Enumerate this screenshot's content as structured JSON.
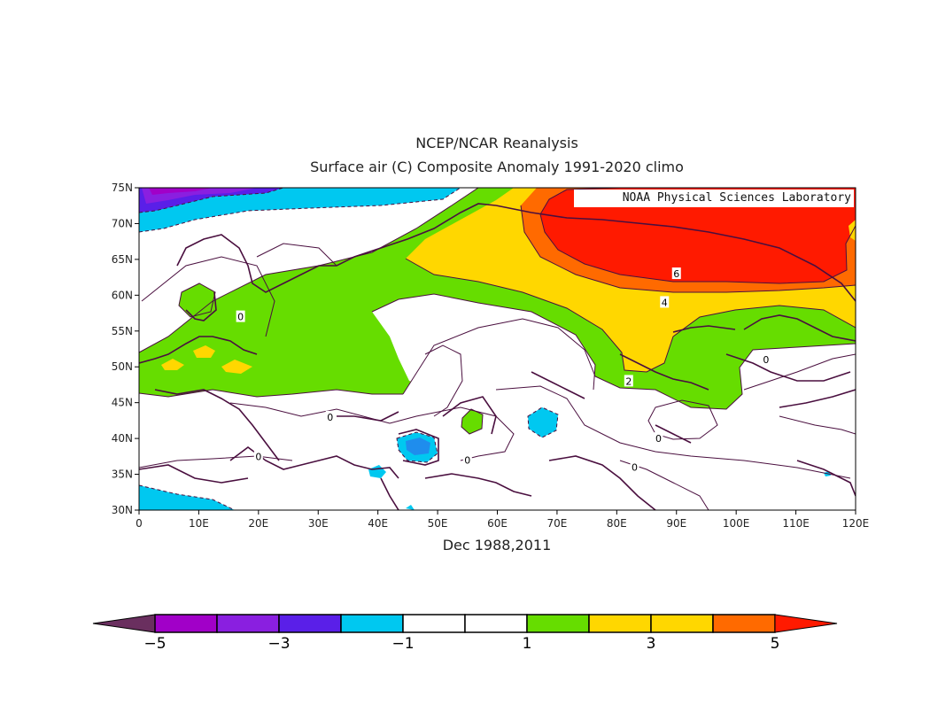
{
  "header": {
    "title": "NCEP/NCAR Reanalysis",
    "subtitle": "Surface air (C) Composite Anomaly 1991-2020 climo"
  },
  "credit": "NOAA Physical Sciences Laboratory",
  "bottom_label": "Dec 1988,2011",
  "axes": {
    "lat_ticks": [
      "75N",
      "70N",
      "65N",
      "60N",
      "55N",
      "50N",
      "45N",
      "40N",
      "35N",
      "30N"
    ],
    "lon_ticks": [
      "0",
      "10E",
      "20E",
      "30E",
      "40E",
      "50E",
      "60E",
      "70E",
      "80E",
      "90E",
      "100E",
      "110E",
      "120E"
    ]
  },
  "map": {
    "region": {
      "lon": [
        0,
        120
      ],
      "lat": [
        30,
        75
      ]
    },
    "contour_labels": [
      {
        "text": "6",
        "lon": 90,
        "lat": 63
      },
      {
        "text": "4",
        "lon": 88,
        "lat": 59
      },
      {
        "text": "2",
        "lon": 82,
        "lat": 48
      },
      {
        "text": "0",
        "lon": 17,
        "lat": 57
      },
      {
        "text": "0",
        "lon": 32,
        "lat": 43
      },
      {
        "text": "0",
        "lon": 20,
        "lat": 37.5
      },
      {
        "text": "0",
        "lon": 55,
        "lat": 37
      },
      {
        "text": "0",
        "lon": 83,
        "lat": 36
      },
      {
        "text": "0",
        "lon": 87,
        "lat": 40
      },
      {
        "text": "0",
        "lon": 105,
        "lat": 51
      }
    ]
  },
  "colorbar": {
    "labels": [
      {
        "text": "-5",
        "i": 0
      },
      {
        "text": "-3",
        "i": 2
      },
      {
        "text": "-1",
        "i": 4
      },
      {
        "text": "1",
        "i": 6
      },
      {
        "text": "3",
        "i": 8
      },
      {
        "text": "5",
        "i": 10
      }
    ],
    "low_color": "#6a2f5f",
    "high_color": "#ff1a00",
    "colors": [
      "#a100c8",
      "#8a1fe0",
      "#5a1fe8",
      "#00c8f0",
      "#ffffff",
      "#ffffff",
      "#66dd00",
      "#ffd700",
      "#ffd700",
      "#ff6a00"
    ]
  },
  "palette": {
    "cold_dark": "#5a1fe8",
    "cold": "#00c8f0",
    "warm1": "#66dd00",
    "warm2": "#ffd700",
    "warm3": "#ff6a00",
    "warm4": "#ff1a00",
    "coast": "#4a0f3f"
  }
}
